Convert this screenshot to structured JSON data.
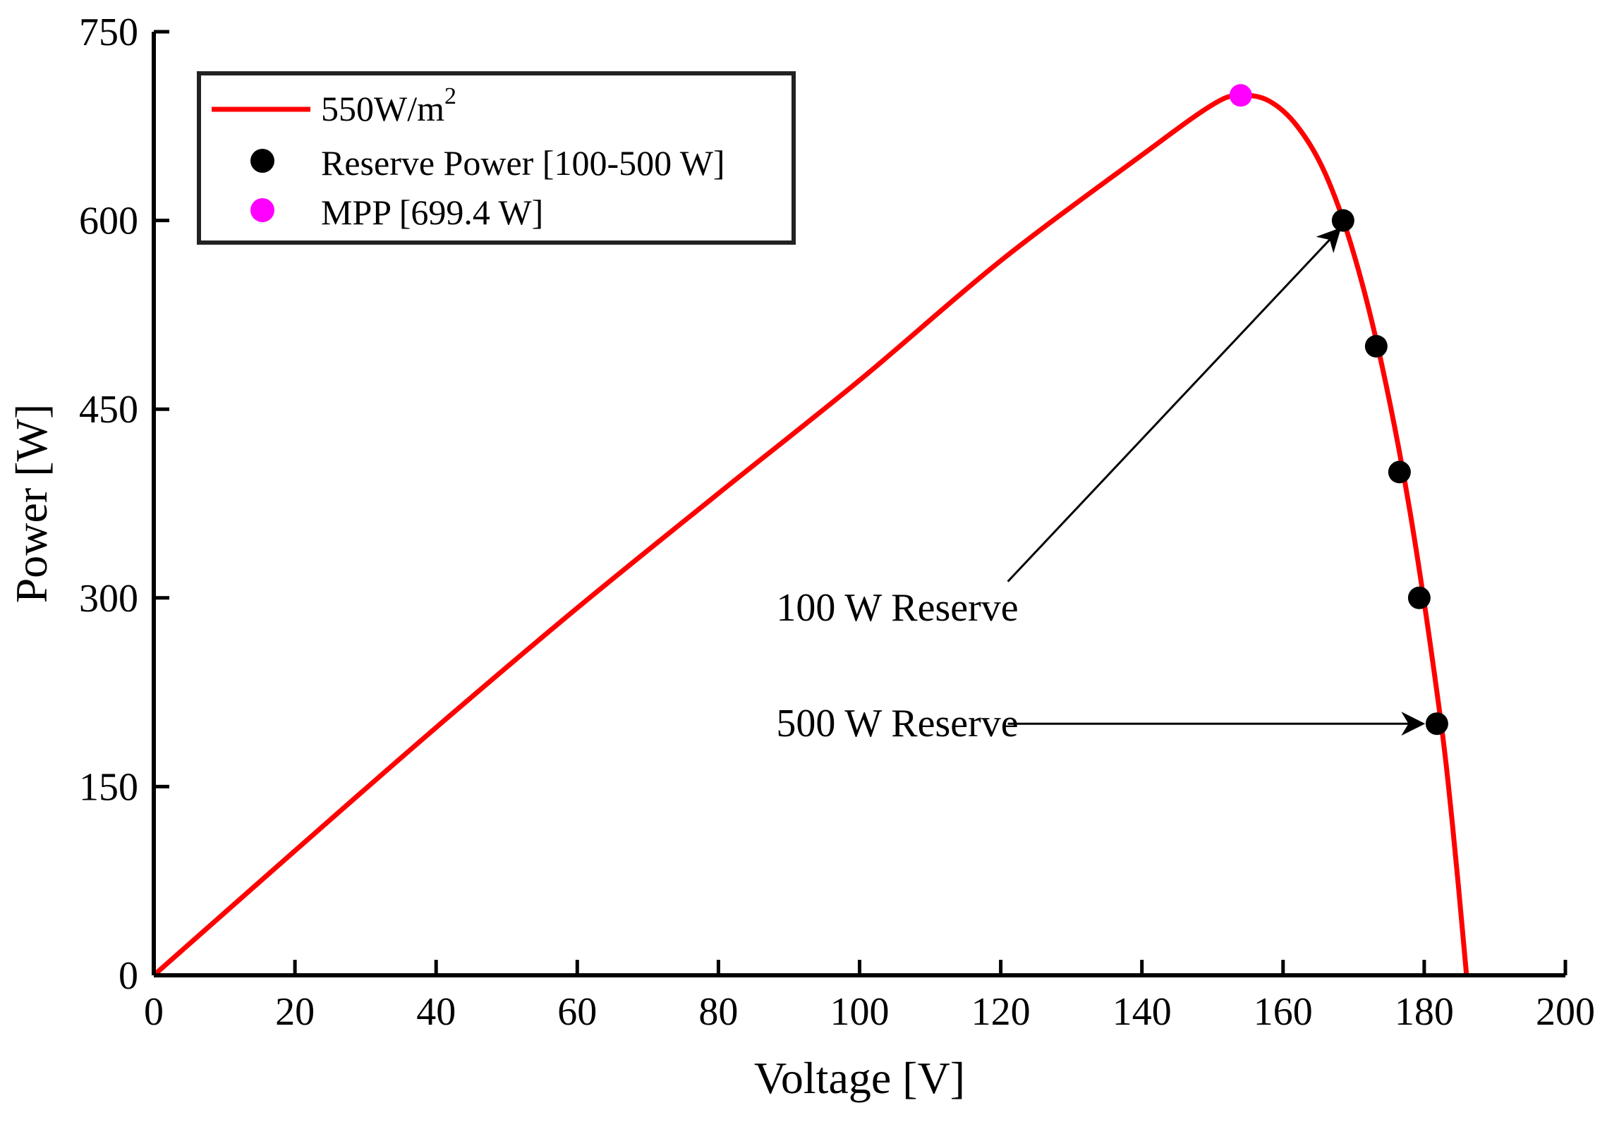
{
  "chart_data": {
    "type": "line",
    "title": "",
    "xlabel": "Voltage [V]",
    "ylabel": "Power [W]",
    "xlim": [
      0,
      200
    ],
    "ylim": [
      0,
      750
    ],
    "xticks": [
      0,
      20,
      40,
      60,
      80,
      100,
      120,
      140,
      160,
      180,
      200
    ],
    "yticks": [
      0,
      150,
      300,
      450,
      600,
      750
    ],
    "grid": false,
    "legend_position": "top-left",
    "series": [
      {
        "name": "550W/m",
        "name_superscript": "2",
        "kind": "line",
        "color": "#ff0000",
        "x": [
          0,
          20,
          40,
          60,
          80,
          100,
          120,
          140,
          150,
          154,
          158,
          162,
          166,
          170,
          174,
          178,
          182,
          184,
          186
        ],
        "y": [
          0,
          99,
          197,
          292,
          383,
          473,
          568,
          652,
          692,
          699.4,
          695,
          675,
          637,
          574,
          485,
          368,
          217,
          120,
          0
        ]
      },
      {
        "name": "Reserve Power [100-500 W]",
        "kind": "scatter",
        "color": "#000000",
        "x": [
          168.5,
          173.2,
          176.5,
          179.3,
          181.8
        ],
        "y": [
          600,
          500,
          400,
          300,
          200
        ]
      },
      {
        "name": "MPP [699.4 W]",
        "kind": "scatter",
        "color": "#ff00ff",
        "x": [
          154
        ],
        "y": [
          699.4
        ]
      }
    ],
    "annotations": [
      {
        "text": "100 W Reserve",
        "text_at": [
          122.5,
          292
        ],
        "arrow_from": [
          121,
          313
        ],
        "arrow_to": [
          168,
          593
        ]
      },
      {
        "text": "500 W Reserve",
        "text_at": [
          122.5,
          200
        ],
        "arrow_from": [
          121,
          200
        ],
        "arrow_to": [
          179.8,
          200
        ]
      }
    ]
  }
}
